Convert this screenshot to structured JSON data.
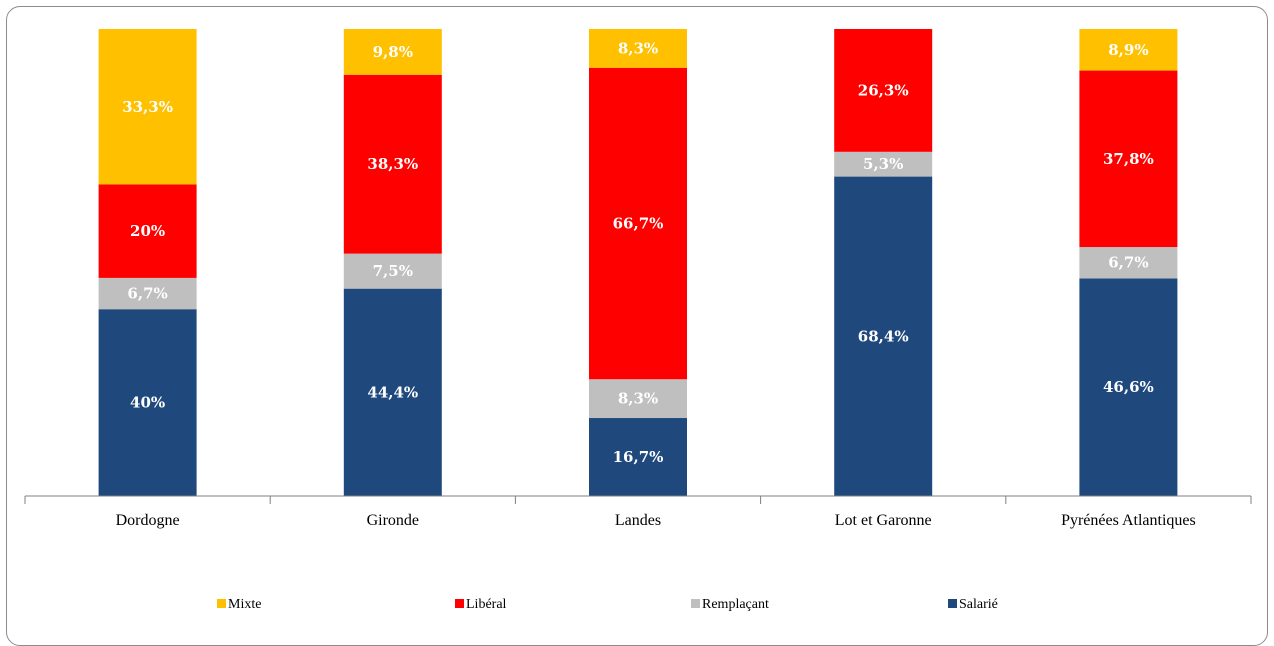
{
  "chart_data": {
    "type": "bar",
    "stacked": true,
    "categories": [
      "Dordogne",
      "Gironde",
      "Landes",
      "Lot et Garonne",
      "Pyrénées Atlantiques"
    ],
    "series": [
      {
        "name": "Salarié",
        "color": "#1F497D",
        "values": [
          40,
          44.4,
          16.7,
          68.4,
          46.6
        ],
        "labels": [
          "40%",
          "44,4%",
          "16,7%",
          "68,4%",
          "46,6%"
        ]
      },
      {
        "name": "Remplaçant",
        "color": "#BFBFBF",
        "values": [
          6.7,
          7.5,
          8.3,
          5.3,
          6.7
        ],
        "labels": [
          "6,7%",
          "7,5%",
          "8,3%",
          "5,3%",
          "6,7%"
        ]
      },
      {
        "name": "Libéral",
        "color": "#FF0000",
        "values": [
          20,
          38.3,
          66.7,
          26.3,
          37.8
        ],
        "labels": [
          "20%",
          "38,3%",
          "66,7%",
          "26,3%",
          "37,8%"
        ]
      },
      {
        "name": "Mixte",
        "color": "#FFC000",
        "values": [
          33.3,
          9.8,
          8.3,
          0,
          8.9
        ],
        "labels": [
          "33,3%",
          "9,8%",
          "8,3%",
          "",
          "8,9%"
        ]
      }
    ],
    "legend_order": [
      "Mixte",
      "Libéral",
      "Remplaçant",
      "Salarié"
    ],
    "legend_position": "bottom",
    "ylim": [
      0,
      100
    ],
    "grid": false,
    "title": "",
    "xlabel": "",
    "ylabel": ""
  }
}
